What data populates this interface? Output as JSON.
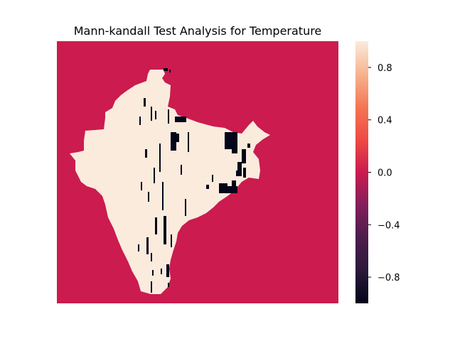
{
  "chart_data": {
    "type": "heatmap",
    "title": "Mann-kandall Test Analysis for Temperature",
    "xlabel": "",
    "ylabel": "",
    "value_range": [
      -1.0,
      1.0
    ],
    "background_value": 0.0,
    "land_value": 1.0,
    "negative_value": -1.0,
    "colormap": "rocket",
    "colorbar": {
      "ticks": [
        0.8,
        0.4,
        0.0,
        -0.4,
        -0.8
      ],
      "tick_labels": [
        "0.8",
        "0.4",
        "0.0",
        "−0.4",
        "−0.8"
      ]
    }
  },
  "colors": {
    "background_cell": "#cb1b4f",
    "land_cell": "#faebdd",
    "negative_cell": "#03051a"
  }
}
